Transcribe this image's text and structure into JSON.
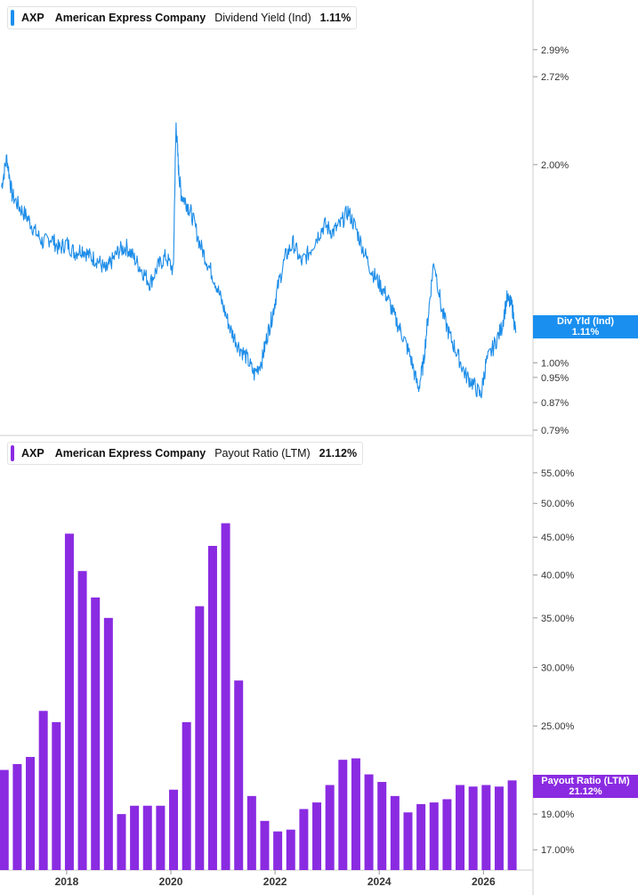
{
  "top": {
    "ticker": "AXP",
    "company": "American Express Company",
    "metric": "Dividend Yield (Ind)",
    "value": "1.11%",
    "flag_name": "Div Yld (Ind)",
    "flag_value": "1.11%"
  },
  "bottom": {
    "ticker": "AXP",
    "company": "American Express Company",
    "metric": "Payout Ratio (LTM)",
    "value": "21.12%",
    "flag_name": "Payout Ratio (LTM)",
    "flag_value": "21.12%"
  },
  "colors": {
    "line": "#1d8de8",
    "bar": "#8a2be2",
    "flag_top": "#1a8fef",
    "flag_bottom": "#8a2be2",
    "axis": "#cccccc"
  },
  "chart_data": [
    {
      "type": "line",
      "scale": "log",
      "title": "AXP American Express Company Dividend Yield (Ind) 1.11%",
      "series": [
        {
          "name": "Dividend Yield (Ind)",
          "x": [
            2016.75,
            2016.85,
            2016.95,
            2017.1,
            2017.25,
            2017.4,
            2017.55,
            2017.7,
            2017.85,
            2018.0,
            2018.15,
            2018.3,
            2018.45,
            2018.6,
            2018.75,
            2018.85,
            2019.0,
            2019.15,
            2019.3,
            2019.45,
            2019.6,
            2019.75,
            2019.9,
            2020.05,
            2020.1,
            2020.15,
            2020.2,
            2020.3,
            2020.4,
            2020.55,
            2020.7,
            2020.85,
            2021.0,
            2021.15,
            2021.3,
            2021.45,
            2021.6,
            2021.75,
            2021.85,
            2021.95,
            2022.05,
            2022.2,
            2022.35,
            2022.5,
            2022.65,
            2022.8,
            2022.95,
            2023.1,
            2023.25,
            2023.4,
            2023.55,
            2023.7,
            2023.85,
            2024.0,
            2024.15,
            2024.3,
            2024.45,
            2024.6,
            2024.75,
            2024.85,
            2024.95,
            2025.05,
            2025.2,
            2025.35,
            2025.5,
            2025.65,
            2025.8,
            2025.95,
            2026.05,
            2026.2,
            2026.35,
            2026.45,
            2026.55,
            2026.62
          ],
          "y": [
            1.85,
            2.05,
            1.8,
            1.72,
            1.66,
            1.58,
            1.52,
            1.55,
            1.49,
            1.52,
            1.47,
            1.49,
            1.45,
            1.43,
            1.38,
            1.42,
            1.48,
            1.5,
            1.44,
            1.38,
            1.32,
            1.4,
            1.45,
            1.38,
            2.3,
            1.95,
            1.8,
            1.75,
            1.68,
            1.52,
            1.42,
            1.33,
            1.22,
            1.12,
            1.06,
            1.02,
            0.96,
            1.01,
            1.1,
            1.18,
            1.3,
            1.45,
            1.52,
            1.42,
            1.47,
            1.55,
            1.62,
            1.58,
            1.62,
            1.7,
            1.6,
            1.48,
            1.38,
            1.32,
            1.26,
            1.17,
            1.1,
            1.02,
            0.91,
            1.0,
            1.2,
            1.43,
            1.2,
            1.1,
            1.03,
            0.96,
            0.93,
            0.89,
            1.0,
            1.06,
            1.13,
            1.25,
            1.22,
            1.11
          ]
        }
      ],
      "y_ticks": [
        "2.99%",
        "2.72%",
        "2.00%",
        "1.00%",
        "0.95%",
        "0.87%",
        "0.79%"
      ],
      "y_tick_values": [
        2.99,
        2.72,
        2.0,
        1.0,
        0.95,
        0.87,
        0.79
      ],
      "ylim": [
        0.79,
        3.2
      ]
    },
    {
      "type": "bar",
      "scale": "log",
      "title": "AXP American Express Company Payout Ratio (LTM) 21.12%",
      "series": [
        {
          "name": "Payout Ratio (LTM)",
          "x": [
            2016.75,
            2017.0,
            2017.25,
            2017.5,
            2017.75,
            2018.0,
            2018.25,
            2018.5,
            2018.75,
            2019.0,
            2019.25,
            2019.5,
            2019.75,
            2020.0,
            2020.25,
            2020.5,
            2020.75,
            2021.0,
            2021.25,
            2021.5,
            2021.75,
            2022.0,
            2022.25,
            2022.5,
            2022.75,
            2023.0,
            2023.25,
            2023.5,
            2023.75,
            2024.0,
            2024.25,
            2024.5,
            2024.75,
            2025.0,
            2025.25,
            2025.5,
            2025.75,
            2026.0,
            2026.25,
            2026.5
          ],
          "values": [
            21.8,
            22.2,
            22.7,
            26.2,
            25.3,
            45.5,
            40.5,
            37.3,
            35.0,
            19.0,
            19.5,
            19.5,
            19.5,
            20.5,
            25.3,
            36.3,
            43.8,
            47.0,
            28.8,
            20.1,
            18.6,
            18.0,
            18.1,
            19.3,
            19.7,
            20.8,
            22.5,
            22.6,
            21.5,
            21.0,
            20.1,
            19.1,
            19.6,
            19.7,
            19.9,
            20.8,
            20.7,
            20.8,
            20.7,
            21.1
          ]
        }
      ],
      "y_ticks": [
        "55.00%",
        "50.00%",
        "45.00%",
        "40.00%",
        "35.00%",
        "30.00%",
        "25.00%",
        "19.00%",
        "17.00%"
      ],
      "y_tick_values": [
        55,
        50,
        45,
        40,
        35,
        30,
        25,
        19,
        17
      ],
      "ylim": [
        16.5,
        57
      ]
    }
  ],
  "x_axis": {
    "ticks": [
      "2018",
      "2020",
      "2022",
      "2024",
      "2026"
    ],
    "tick_values": [
      2018,
      2020,
      2022,
      2024,
      2026
    ]
  }
}
